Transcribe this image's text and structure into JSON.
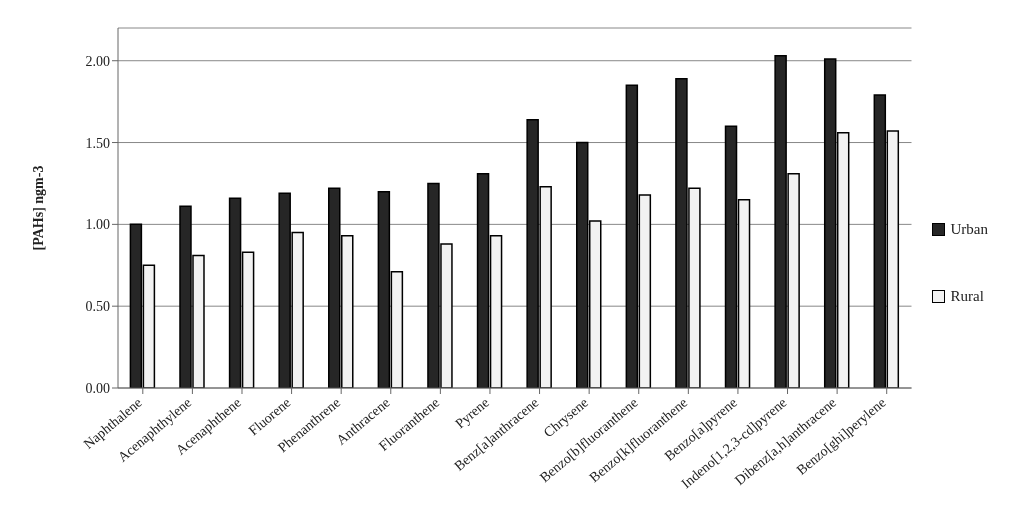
{
  "chart_data": {
    "type": "bar",
    "ylabel": "[PAHs] ngm-3",
    "categories": [
      "Naphthalene",
      "Acenaphthylene",
      "Acenaphthene",
      "Fluorene",
      "Phenanthrene",
      "Anthracene",
      "Fluoranthene",
      "Pyrene",
      "Benz[a]anthracene",
      "Chrysene",
      "Benzo[b]fluoranthene",
      "Benzo[k]fluoranthene",
      "Benzo[a]pyrene",
      "Indeno[1,2,3-cd]pyrene",
      "Dibenz[a,h]anthracene",
      "Benzo[ghi]perylene"
    ],
    "series": [
      {
        "name": "Urban",
        "color": "#262626",
        "values": [
          1.0,
          1.11,
          1.16,
          1.19,
          1.22,
          1.2,
          1.25,
          1.31,
          1.64,
          1.5,
          1.85,
          1.89,
          1.6,
          2.03,
          2.01,
          1.79
        ]
      },
      {
        "name": "Rural",
        "color": "#f2f2f2",
        "values": [
          0.75,
          0.81,
          0.83,
          0.95,
          0.93,
          0.71,
          0.88,
          0.93,
          1.23,
          1.02,
          1.18,
          1.22,
          1.15,
          1.31,
          1.56,
          1.57
        ]
      }
    ],
    "ylim": [
      0,
      2.2
    ],
    "yticks": [
      {
        "value": 0,
        "label": "0.00"
      },
      {
        "value": 0.5,
        "label": "0.50"
      },
      {
        "value": 1,
        "label": "1.00"
      },
      {
        "value": 1.5,
        "label": "1.50"
      },
      {
        "value": 2,
        "label": "2.00"
      }
    ],
    "grid": "y",
    "legend": "right"
  }
}
